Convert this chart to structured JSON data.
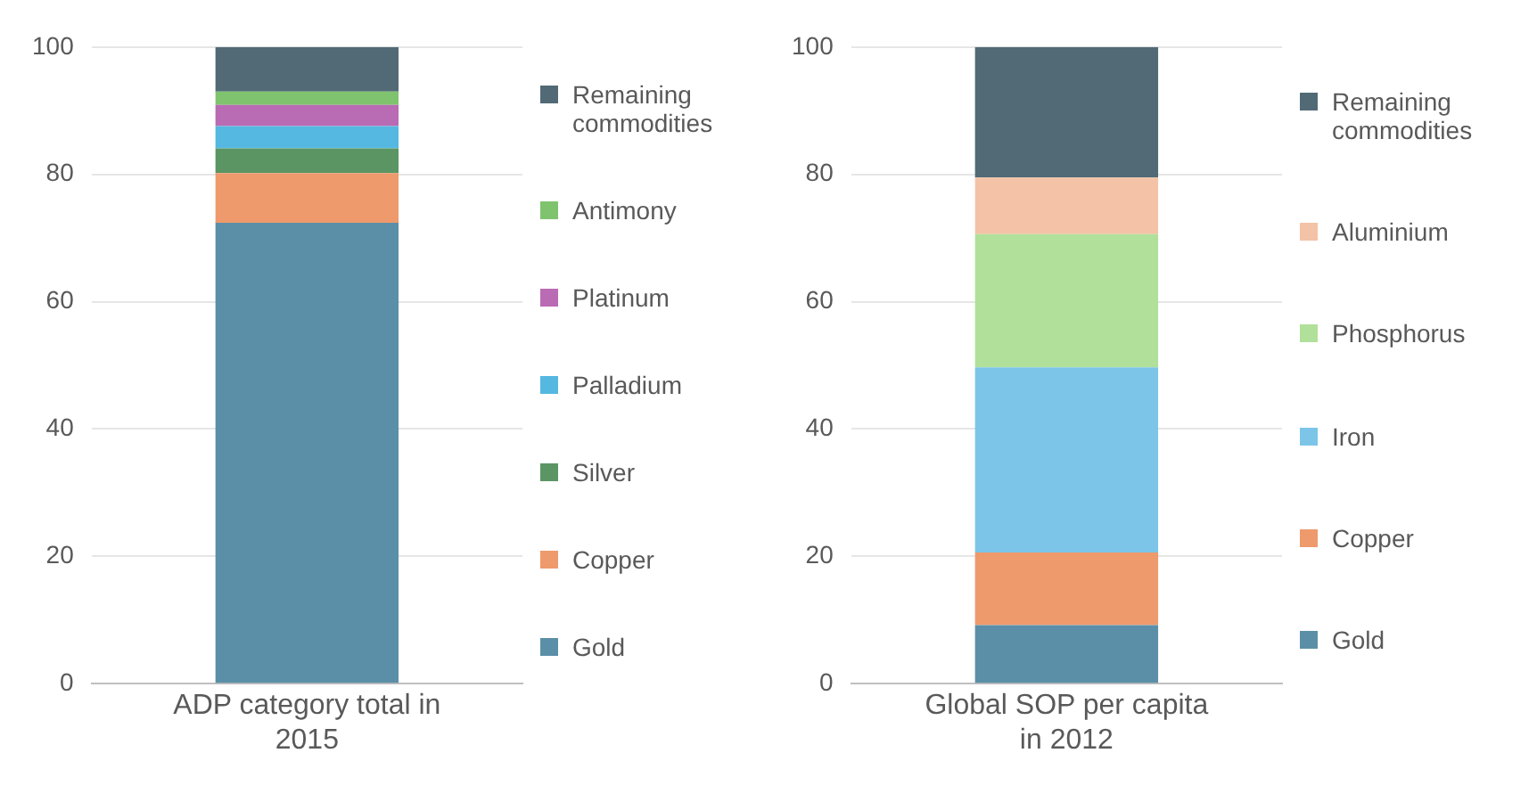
{
  "chart_data": [
    {
      "type": "bar",
      "stacked": true,
      "categories": [
        "ADP category total in 2015"
      ],
      "ylim": [
        0,
        100
      ],
      "yticks": [
        0,
        20,
        40,
        60,
        80,
        100
      ],
      "grid": "y",
      "legend": "right",
      "series": [
        {
          "name": "Gold",
          "color": "#5b8fa8",
          "values": [
            72.4
          ]
        },
        {
          "name": "Copper",
          "color": "#ee9a6c",
          "values": [
            7.8
          ]
        },
        {
          "name": "Silver",
          "color": "#5a9563",
          "values": [
            3.9
          ]
        },
        {
          "name": "Palladium",
          "color": "#55b8e0",
          "values": [
            3.5
          ]
        },
        {
          "name": "Platinum",
          "color": "#b96bb4",
          "values": [
            3.3
          ]
        },
        {
          "name": "Antimony",
          "color": "#7fc36e",
          "values": [
            2.1
          ]
        },
        {
          "name": "Remaining commodities",
          "color": "#526a76",
          "values": [
            7.0
          ]
        }
      ]
    },
    {
      "type": "bar",
      "stacked": true,
      "categories": [
        "Global SOP per capita in 2012"
      ],
      "ylim": [
        0,
        100
      ],
      "yticks": [
        0,
        20,
        40,
        60,
        80,
        100
      ],
      "grid": "y",
      "legend": "right",
      "series": [
        {
          "name": "Gold",
          "color": "#5b8fa8",
          "values": [
            9.2
          ]
        },
        {
          "name": "Copper",
          "color": "#ee9a6c",
          "values": [
            11.4
          ]
        },
        {
          "name": "Iron",
          "color": "#7cc5e8",
          "values": [
            29.1
          ]
        },
        {
          "name": "Phosphorus",
          "color": "#b0e09a",
          "values": [
            20.9
          ]
        },
        {
          "name": "Aluminium",
          "color": "#f4c2a6",
          "values": [
            8.9
          ]
        },
        {
          "name": "Remaining commodities",
          "color": "#526a76",
          "values": [
            20.5
          ]
        }
      ]
    }
  ]
}
